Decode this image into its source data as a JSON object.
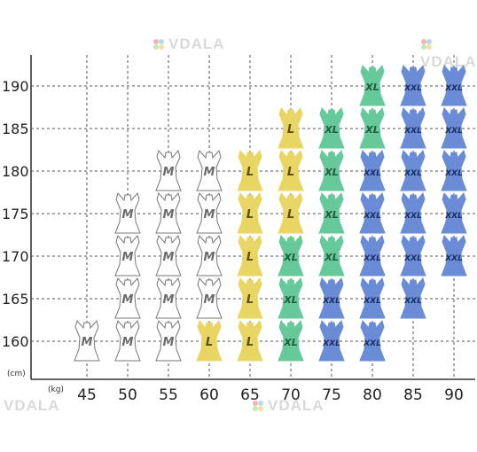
{
  "chart_data": {
    "type": "scatter",
    "x_unit": "(kg)",
    "y_unit": "(cm)",
    "x_ticks": [
      "45",
      "50",
      "55",
      "60",
      "65",
      "70",
      "75",
      "80",
      "85",
      "90"
    ],
    "y_ticks": [
      "190",
      "185",
      "180",
      "175",
      "170",
      "165",
      "160"
    ],
    "grid": true,
    "sizes": {
      "M": {
        "label": "M",
        "color": "#ffffff",
        "text_color": "#6a6a6a"
      },
      "L": {
        "label": "L",
        "color": "#e8d563",
        "text_color": "#5a4e10"
      },
      "XL": {
        "label": "XL",
        "color": "#66c99a",
        "text_color": "#1f5a3c"
      },
      "XXL": {
        "label": "XXL",
        "color": "#6a8bd6",
        "text_color": "#1b2f63"
      }
    },
    "points": [
      {
        "kg": 45,
        "cm": 160,
        "size": "M"
      },
      {
        "kg": 50,
        "cm": 160,
        "size": "M"
      },
      {
        "kg": 50,
        "cm": 165,
        "size": "M"
      },
      {
        "kg": 50,
        "cm": 170,
        "size": "M"
      },
      {
        "kg": 50,
        "cm": 175,
        "size": "M"
      },
      {
        "kg": 55,
        "cm": 160,
        "size": "M"
      },
      {
        "kg": 55,
        "cm": 165,
        "size": "M"
      },
      {
        "kg": 55,
        "cm": 170,
        "size": "M"
      },
      {
        "kg": 55,
        "cm": 175,
        "size": "M"
      },
      {
        "kg": 55,
        "cm": 180,
        "size": "M"
      },
      {
        "kg": 60,
        "cm": 160,
        "size": "L"
      },
      {
        "kg": 60,
        "cm": 165,
        "size": "M"
      },
      {
        "kg": 60,
        "cm": 170,
        "size": "M"
      },
      {
        "kg": 60,
        "cm": 175,
        "size": "M"
      },
      {
        "kg": 60,
        "cm": 180,
        "size": "M"
      },
      {
        "kg": 65,
        "cm": 160,
        "size": "L"
      },
      {
        "kg": 65,
        "cm": 165,
        "size": "L"
      },
      {
        "kg": 65,
        "cm": 170,
        "size": "L"
      },
      {
        "kg": 65,
        "cm": 175,
        "size": "L"
      },
      {
        "kg": 65,
        "cm": 180,
        "size": "L"
      },
      {
        "kg": 70,
        "cm": 160,
        "size": "XL"
      },
      {
        "kg": 70,
        "cm": 165,
        "size": "XL"
      },
      {
        "kg": 70,
        "cm": 170,
        "size": "XL"
      },
      {
        "kg": 70,
        "cm": 175,
        "size": "L"
      },
      {
        "kg": 70,
        "cm": 180,
        "size": "L"
      },
      {
        "kg": 70,
        "cm": 185,
        "size": "L"
      },
      {
        "kg": 75,
        "cm": 160,
        "size": "XXL"
      },
      {
        "kg": 75,
        "cm": 165,
        "size": "XXL"
      },
      {
        "kg": 75,
        "cm": 170,
        "size": "XL"
      },
      {
        "kg": 75,
        "cm": 175,
        "size": "XL"
      },
      {
        "kg": 75,
        "cm": 180,
        "size": "XL"
      },
      {
        "kg": 75,
        "cm": 185,
        "size": "XL"
      },
      {
        "kg": 80,
        "cm": 160,
        "size": "XXL"
      },
      {
        "kg": 80,
        "cm": 165,
        "size": "XXL"
      },
      {
        "kg": 80,
        "cm": 170,
        "size": "XXL"
      },
      {
        "kg": 80,
        "cm": 175,
        "size": "XXL"
      },
      {
        "kg": 80,
        "cm": 180,
        "size": "XXL"
      },
      {
        "kg": 80,
        "cm": 185,
        "size": "XL"
      },
      {
        "kg": 80,
        "cm": 190,
        "size": "XL"
      },
      {
        "kg": 85,
        "cm": 165,
        "size": "XXL"
      },
      {
        "kg": 85,
        "cm": 170,
        "size": "XXL"
      },
      {
        "kg": 85,
        "cm": 175,
        "size": "XXL"
      },
      {
        "kg": 85,
        "cm": 180,
        "size": "XXL"
      },
      {
        "kg": 85,
        "cm": 185,
        "size": "XXL"
      },
      {
        "kg": 85,
        "cm": 190,
        "size": "XXL"
      },
      {
        "kg": 90,
        "cm": 170,
        "size": "XXL"
      },
      {
        "kg": 90,
        "cm": 175,
        "size": "XXL"
      },
      {
        "kg": 90,
        "cm": 180,
        "size": "XXL"
      },
      {
        "kg": 90,
        "cm": 185,
        "size": "XXL"
      },
      {
        "kg": 90,
        "cm": 190,
        "size": "XXL"
      }
    ]
  },
  "watermark": {
    "text": "VDALA"
  }
}
